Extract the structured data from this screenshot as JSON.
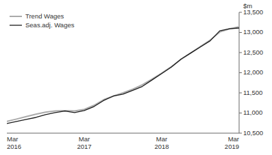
{
  "chart_data": {
    "type": "line",
    "y_label": "$m",
    "categories": [
      "Mar\n2016",
      null,
      null,
      null,
      null,
      null,
      null,
      null,
      "Mar\n2017",
      null,
      null,
      null,
      null,
      null,
      null,
      null,
      "Mar\n2018",
      null,
      null,
      null,
      null,
      null,
      null,
      null,
      "Mar\n2019"
    ],
    "series": [
      {
        "name": "Trend Wages",
        "color": "#aaaaaa",
        "values": [
          10790,
          10850,
          10910,
          10970,
          11020,
          11050,
          11060,
          11050,
          11090,
          11190,
          11330,
          11420,
          11500,
          11590,
          11700,
          11840,
          11990,
          12150,
          12330,
          12490,
          12650,
          12810,
          13010,
          13090,
          13140
        ]
      },
      {
        "name": "Seas.adj. Wages",
        "color": "#1a1a1a",
        "values": [
          10740,
          10790,
          10840,
          10890,
          10960,
          11010,
          11050,
          11010,
          11060,
          11160,
          11310,
          11420,
          11470,
          11560,
          11660,
          11820,
          11980,
          12140,
          12340,
          12490,
          12640,
          12790,
          13040,
          13090,
          13110
        ]
      }
    ],
    "ylim": [
      10500,
      13500
    ],
    "yticks": [
      {
        "value": 10500,
        "label": "10,500"
      },
      {
        "value": 11000,
        "label": "11,000"
      },
      {
        "value": 11500,
        "label": "11,500"
      },
      {
        "value": 12000,
        "label": "12,000"
      },
      {
        "value": 12500,
        "label": "12,500"
      },
      {
        "value": 13000,
        "label": "13,000"
      },
      {
        "value": 13500,
        "label": "13,500"
      }
    ],
    "grid": false,
    "legend": "upper left"
  }
}
